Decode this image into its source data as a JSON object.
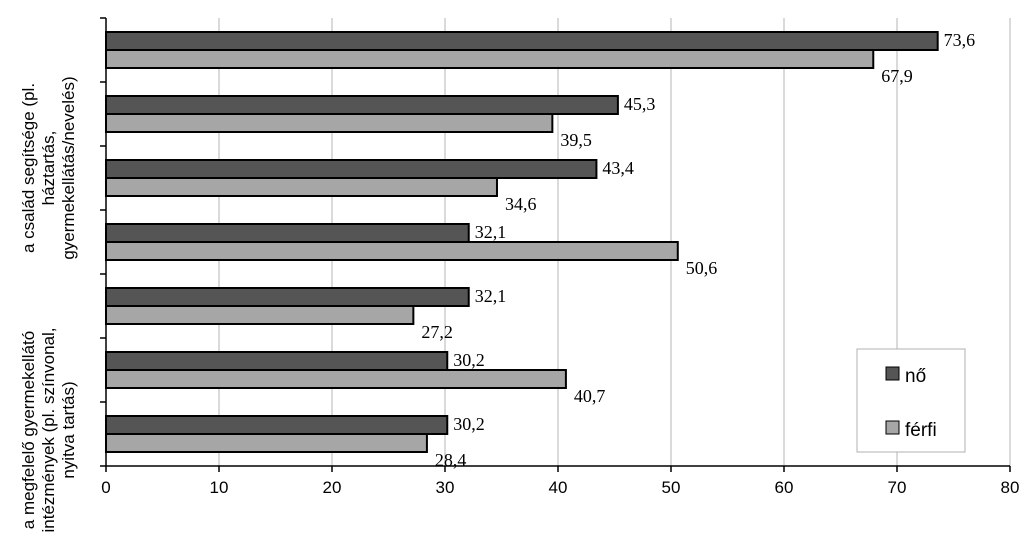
{
  "chart_data": {
    "type": "bar",
    "orientation": "horizontal",
    "categories": [
      "",
      "",
      "",
      "",
      "",
      "",
      ""
    ],
    "category_labels_visible": [
      {
        "lines": [
          "a család segítsége (pl.",
          "háztartás,",
          "gyermekellátás/nevelés)"
        ]
      },
      {
        "lines": [
          "a megfelelő gyermekellátó",
          "intézmények (pl. színvonal,",
          "nyitva tartás)"
        ]
      }
    ],
    "series": [
      {
        "name": "nő",
        "color": "#555555",
        "values": [
          73.6,
          45.3,
          43.4,
          32.1,
          32.1,
          30.2,
          30.2
        ],
        "labels": [
          "73,6",
          "45,3",
          "43,4",
          "32,1",
          "32,1",
          "30,2",
          "30,2"
        ]
      },
      {
        "name": "férfi",
        "color": "#a6a6a6",
        "values": [
          67.9,
          39.5,
          34.6,
          50.6,
          27.2,
          40.7,
          28.4
        ],
        "labels": [
          "67,9",
          "39,5",
          "34,6",
          "50,6",
          "27,2",
          "40,7",
          "28,4"
        ]
      }
    ],
    "xlim": [
      0,
      80
    ],
    "x_ticks": [
      "0",
      "10",
      "20",
      "30",
      "40",
      "50",
      "60",
      "70",
      "80"
    ],
    "grid": "vertical",
    "legend": {
      "position": "bottom-right",
      "items": [
        "nő",
        "férfi"
      ]
    }
  }
}
